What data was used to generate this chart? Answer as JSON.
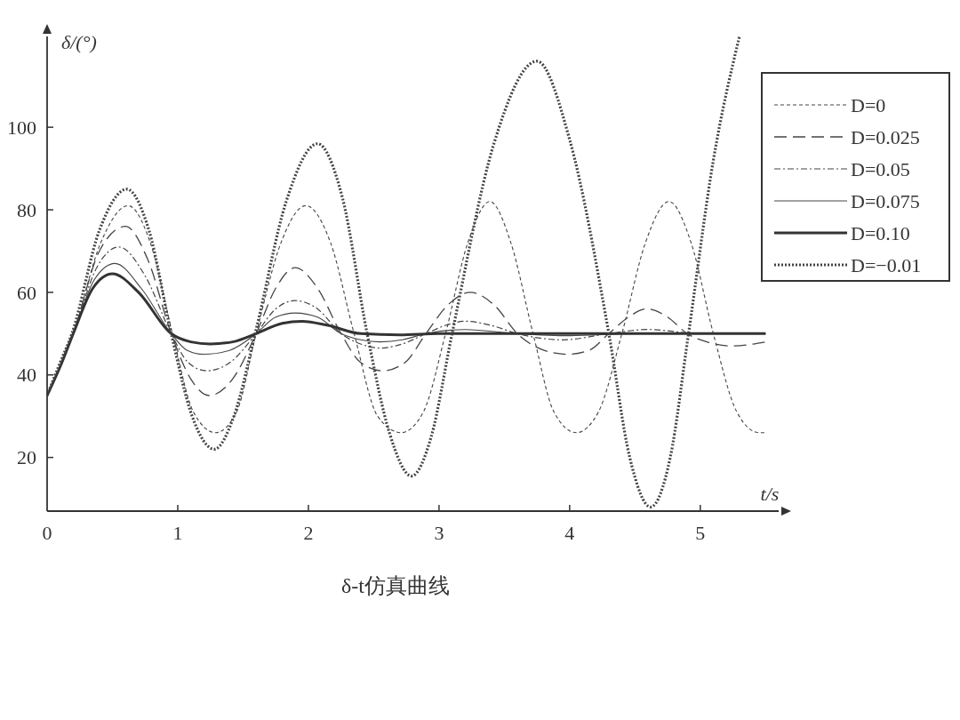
{
  "chart_data": {
    "type": "line",
    "title": "δ-t仿真曲线",
    "xlabel": "t/s",
    "ylabel": "δ/(°)",
    "xlim": [
      0,
      5.6
    ],
    "ylim": [
      7,
      122
    ],
    "xticks": [
      0,
      1,
      2,
      3,
      4,
      5
    ],
    "yticks": [
      20,
      40,
      60,
      80,
      100
    ],
    "grid": false,
    "legend": "top right",
    "series": [
      {
        "name": "D=0",
        "color": "#444444",
        "line_style": "dashed",
        "x": [
          0,
          0.1,
          0.2,
          0.41,
          0.62,
          0.79,
          0.96,
          1.12,
          1.29,
          1.45,
          1.6,
          1.79,
          1.98,
          2.17,
          2.35,
          2.53,
          2.71,
          2.88,
          3.05,
          3.22,
          3.39,
          3.55,
          3.72,
          3.88,
          4.05,
          4.22,
          4.4,
          4.58,
          4.76,
          4.93,
          5.1,
          5.28,
          5.45,
          5.5
        ],
        "values": [
          35,
          42,
          50,
          72,
          81,
          72,
          50,
          31,
          26,
          31,
          50,
          72,
          81,
          72,
          50,
          30,
          26,
          31,
          50,
          72,
          82,
          72,
          50,
          31,
          26,
          31,
          50,
          72,
          82,
          72,
          50,
          31,
          26,
          26
        ]
      },
      {
        "name": "D=0.025",
        "color": "#444444",
        "line_style": "dashed",
        "x": [
          0,
          0.1,
          0.2,
          0.4,
          0.6,
          0.77,
          0.95,
          1.1,
          1.24,
          1.42,
          1.6,
          1.75,
          1.9,
          2.07,
          2.25,
          2.4,
          2.57,
          2.74,
          2.9,
          3.07,
          3.24,
          3.42,
          3.6,
          3.8,
          3.98,
          4.15,
          4.3,
          4.45,
          4.59,
          4.75,
          4.9,
          5.05,
          5.23,
          5.5
        ],
        "values": [
          35,
          42,
          50,
          70,
          76,
          68,
          50,
          39,
          35,
          39,
          50,
          61,
          66,
          61,
          50,
          43,
          41,
          43,
          50,
          57,
          60,
          57,
          50,
          46,
          45,
          46,
          50,
          54,
          56,
          54,
          50,
          48,
          47,
          48
        ]
      },
      {
        "name": "D=0.05",
        "color": "#444444",
        "line_style": "dashed",
        "x": [
          0,
          0.1,
          0.2,
          0.38,
          0.55,
          0.75,
          0.95,
          1.08,
          1.22,
          1.4,
          1.6,
          1.75,
          1.9,
          2.07,
          2.25,
          2.4,
          2.55,
          2.72,
          2.9,
          3.05,
          3.2,
          3.4,
          3.6,
          3.95,
          4.3,
          4.6,
          5,
          5.5
        ],
        "values": [
          35,
          42,
          50,
          66,
          71,
          64,
          50,
          43,
          41,
          43,
          50,
          56,
          58,
          56,
          50,
          47.5,
          46.5,
          47.5,
          50,
          52,
          53,
          52,
          50,
          48.5,
          50,
          51,
          50,
          50
        ]
      },
      {
        "name": "D=0.075",
        "color": "#444444",
        "line_style": "solid",
        "x": [
          0,
          0.1,
          0.2,
          0.36,
          0.52,
          0.72,
          0.95,
          1.07,
          1.2,
          1.4,
          1.6,
          1.75,
          1.9,
          2.07,
          2.25,
          2.4,
          2.55,
          2.72,
          2.9,
          3.2,
          3.6,
          4,
          4.5,
          5.5
        ],
        "values": [
          35,
          42,
          50,
          63,
          67,
          61,
          50,
          46,
          45,
          46,
          50,
          54,
          55,
          54,
          50,
          48.5,
          48,
          48.5,
          50,
          51,
          50,
          49.5,
          50,
          50
        ]
      },
      {
        "name": "D=0.10",
        "color": "#333333",
        "line_style": "solid",
        "x": [
          0,
          0.1,
          0.2,
          0.35,
          0.5,
          0.7,
          0.95,
          1.1,
          1.25,
          1.42,
          1.6,
          1.8,
          1.95,
          2.15,
          2.4,
          2.7,
          3,
          5.5
        ],
        "values": [
          35,
          42,
          50,
          61,
          64.5,
          60,
          50,
          48,
          47.5,
          48,
          50,
          52.5,
          53,
          52,
          50,
          49.7,
          50,
          50
        ]
      },
      {
        "name": "D=−0.01",
        "color": "#444444",
        "line_style": "dotted",
        "x": [
          0,
          0.1,
          0.19,
          0.4,
          0.61,
          0.78,
          0.95,
          1.11,
          1.28,
          1.43,
          1.6,
          1.83,
          2.07,
          2.26,
          2.45,
          2.62,
          2.79,
          2.94,
          3.1,
          3.42,
          3.75,
          4,
          4.3,
          4.46,
          4.62,
          4.77,
          4.91,
          5.1,
          5.3
        ],
        "values": [
          35,
          43,
          50,
          75,
          85,
          75,
          50,
          30,
          22,
          30,
          51,
          82,
          96,
          83,
          50,
          26,
          15.5,
          25,
          50,
          96,
          116,
          97,
          50,
          20,
          8,
          20,
          50,
          92,
          122
        ]
      }
    ]
  }
}
